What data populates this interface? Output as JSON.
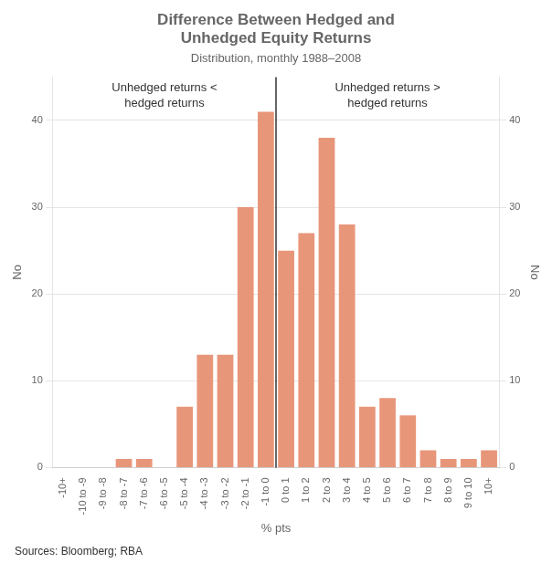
{
  "chart_data": {
    "type": "bar",
    "title": [
      "Difference Between Hedged and",
      "Unhedged Equity Returns"
    ],
    "subtitle": "Distribution, monthly 1988–2008",
    "xlabel": "% pts",
    "ylabel": "No",
    "y2label": "No",
    "source": "Sources: Bloomberg; RBA",
    "annotations": [
      [
        "Unhedged returns <",
        "hedged returns"
      ],
      [
        "Unhedged returns >",
        "hedged returns"
      ]
    ],
    "categories": [
      "-10+",
      "-10 to -9",
      "-9 to -8",
      "-8 to -7",
      "-7 to -6",
      "-6 to -5",
      "-5 to -4",
      "-4 to -3",
      "-3 to -2",
      "-2 to -1",
      "-1 to 0",
      "0 to 1",
      "1 to 2",
      "2 to 3",
      "3 to 4",
      "4 to 5",
      "5 to 6",
      "6 to 7",
      "7 to 8",
      "8 to 9",
      "9 to 10",
      "10+"
    ],
    "values": [
      0,
      0,
      0,
      1,
      1,
      0,
      7,
      13,
      13,
      30,
      41,
      25,
      27,
      38,
      28,
      7,
      8,
      6,
      2,
      1,
      1,
      2
    ],
    "color": "#E8967A",
    "ylim": [
      0,
      45
    ],
    "yticks": [
      0,
      10,
      20,
      30,
      40
    ],
    "y2lim": [
      0,
      45
    ],
    "y2ticks": [
      0,
      10,
      20,
      30,
      40
    ],
    "grid": true
  }
}
